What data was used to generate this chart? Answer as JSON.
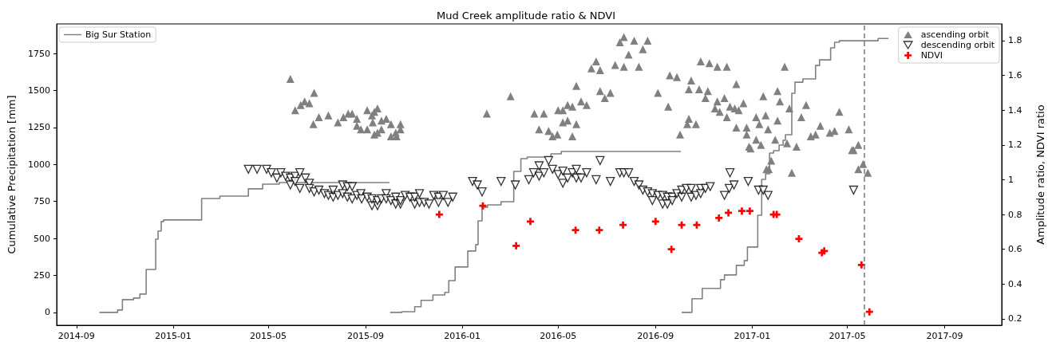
{
  "chart_data": {
    "type": "scatter",
    "title": "Mud Creek amplitude ratio & NDVI",
    "ylabel": "Cumulative Precipitation [mm]",
    "y2label": "Amplitude ratio, NDVI ratio",
    "xlim": [
      "2014-08-07",
      "2017-11-12"
    ],
    "xticks": [
      "2014-09",
      "2015-01",
      "2015-05",
      "2015-09",
      "2016-01",
      "2016-05",
      "2016-09",
      "2017-01",
      "2017-05",
      "2017-09"
    ],
    "ylim": [
      -87,
      1950
    ],
    "yticks": [
      0,
      250,
      500,
      750,
      1000,
      1250,
      1500,
      1750
    ],
    "y2lim": [
      0.163,
      1.896
    ],
    "y2ticks": [
      0.2,
      0.4,
      0.6,
      0.8,
      1.0,
      1.2,
      1.4,
      1.6,
      1.8
    ],
    "legend": "top right",
    "grid": false,
    "ref_lines": [
      {
        "axis": "x",
        "value": "2017-05-22",
        "color": "#808080",
        "line_style": "dashed"
      }
    ],
    "series": [
      {
        "name": "Big Sur Station",
        "type": "step",
        "color": "#808080",
        "x": [
          "2014-09-30",
          "2014-10-23",
          "2014-10-29",
          "2014-11-12",
          "2014-11-20",
          "2014-11-28",
          "2014-12-10",
          "2014-12-13",
          "2014-12-17",
          "2014-12-20",
          "2015-02-06",
          "2015-03-01",
          "2015-04-06",
          "2015-04-24",
          "2015-05-15",
          "2015-09-30",
          "2015-10-01",
          "2015-10-02",
          "2015-10-17",
          "2015-11-02",
          "2015-11-10",
          "2015-11-25",
          "2015-12-10",
          "2015-12-15",
          "2015-12-23",
          "2016-01-08",
          "2016-01-18",
          "2016-01-21",
          "2016-01-26",
          "2016-02-02",
          "2016-02-19",
          "2016-03-06",
          "2016-03-15",
          "2016-03-23",
          "2016-04-22",
          "2016-05-05",
          "2016-10-02",
          "2016-10-03",
          "2016-10-04",
          "2016-10-17",
          "2016-10-30",
          "2016-11-22",
          "2016-11-27",
          "2016-12-12",
          "2016-12-22",
          "2016-12-26",
          "2017-01-08",
          "2017-01-13",
          "2017-01-18",
          "2017-01-23",
          "2017-01-28",
          "2017-02-04",
          "2017-02-09",
          "2017-02-12",
          "2017-02-20",
          "2017-02-24",
          "2017-03-06",
          "2017-03-22",
          "2017-03-27",
          "2017-04-10",
          "2017-04-15",
          "2017-04-21",
          "2017-06-09",
          "2017-06-22"
        ],
        "values": [
          0,
          16,
          86,
          97,
          124,
          290,
          495,
          550,
          614,
          625,
          770,
          786,
          835,
          867,
          878,
          878,
          null,
          0,
          5,
          38,
          81,
          118,
          135,
          215,
          307,
          415,
          458,
          619,
          711,
          727,
          748,
          953,
          1039,
          1050,
          1072,
          1088,
          1088,
          null,
          0,
          92,
          162,
          221,
          253,
          318,
          350,
          442,
          657,
          899,
          937,
          1077,
          1093,
          1131,
          1163,
          1201,
          1481,
          1556,
          1578,
          1669,
          1707,
          1788,
          1826,
          1836,
          1852,
          1852
        ]
      },
      {
        "name": "ascending orbit",
        "axis": "y2",
        "marker": "triangle",
        "color": "#808080",
        "x": [
          "2015-05-29",
          "2015-06-04",
          "2015-06-11",
          "2015-06-16",
          "2015-06-22",
          "2015-06-28",
          "2015-06-27",
          "2015-07-04",
          "2015-07-16",
          "2015-07-28",
          "2015-08-04",
          "2015-08-10",
          "2015-08-15",
          "2015-08-21",
          "2015-08-21",
          "2015-08-26",
          "2015-09-03",
          "2015-09-03",
          "2015-09-09",
          "2015-09-10",
          "2015-09-12",
          "2015-09-12",
          "2015-09-16",
          "2015-09-16",
          "2015-09-21",
          "2015-09-21",
          "2015-09-27",
          "2015-10-03",
          "2015-10-03",
          "2015-10-09",
          "2015-10-10",
          "2015-10-15",
          "2015-10-15",
          "2016-02-01",
          "2016-03-02",
          "2016-04-01",
          "2016-04-07",
          "2016-04-13",
          "2016-04-19",
          "2016-04-24",
          "2016-04-30",
          "2016-05-01",
          "2016-05-07",
          "2016-05-07",
          "2016-05-13",
          "2016-05-13",
          "2016-05-19",
          "2016-05-19",
          "2016-05-24",
          "2016-05-24",
          "2016-05-30",
          "2016-06-06",
          "2016-06-12",
          "2016-06-18",
          "2016-06-23",
          "2016-06-23",
          "2016-06-29",
          "2016-07-06",
          "2016-07-12",
          "2016-07-18",
          "2016-07-23",
          "2016-07-23",
          "2016-07-29",
          "2016-08-05",
          "2016-08-11",
          "2016-08-16",
          "2016-08-22",
          "2016-09-04",
          "2016-09-17",
          "2016-09-19",
          "2016-09-28",
          "2016-10-02",
          "2016-10-11",
          "2016-10-13",
          "2016-10-13",
          "2016-10-16",
          "2016-10-22",
          "2016-10-26",
          "2016-10-28",
          "2016-11-03",
          "2016-11-06",
          "2016-11-08",
          "2016-11-15",
          "2016-11-18",
          "2016-11-18",
          "2016-11-21",
          "2016-11-27",
          "2016-11-30",
          "2016-11-30",
          "2016-12-04",
          "2016-12-10",
          "2016-12-12",
          "2016-12-12",
          "2016-12-15",
          "2016-12-21",
          "2016-12-25",
          "2016-12-25",
          "2016-12-28",
          "2016-12-30",
          "2017-01-06",
          "2017-01-06",
          "2017-01-10",
          "2017-01-12",
          "2017-01-15",
          "2017-01-18",
          "2017-01-19",
          "2017-01-21",
          "2017-01-22",
          "2017-01-25",
          "2017-01-30",
          "2017-02-02",
          "2017-02-02",
          "2017-02-05",
          "2017-02-11",
          "2017-02-14",
          "2017-02-17",
          "2017-02-20",
          "2017-02-26",
          "2017-03-04",
          "2017-03-10",
          "2017-03-16",
          "2017-03-22",
          "2017-03-28",
          "2017-04-09",
          "2017-04-15",
          "2017-04-21",
          "2017-05-03",
          "2017-05-07",
          "2017-05-09",
          "2017-05-15",
          "2017-05-15",
          "2017-05-21",
          "2017-05-27"
        ],
        "values": [
          1.58,
          1.4,
          1.43,
          1.45,
          1.44,
          1.5,
          1.32,
          1.36,
          1.37,
          1.33,
          1.36,
          1.38,
          1.38,
          1.35,
          1.31,
          1.29,
          1.29,
          1.4,
          1.37,
          1.33,
          1.39,
          1.26,
          1.41,
          1.27,
          1.34,
          1.29,
          1.35,
          1.32,
          1.25,
          1.27,
          1.25,
          1.32,
          1.29,
          1.38,
          1.48,
          1.38,
          1.29,
          1.38,
          1.28,
          1.25,
          1.26,
          1.4,
          1.4,
          1.33,
          1.43,
          1.34,
          1.42,
          1.25,
          1.54,
          1.32,
          1.45,
          1.43,
          1.64,
          1.68,
          1.63,
          1.51,
          1.47,
          1.5,
          1.66,
          1.79,
          1.65,
          1.82,
          1.72,
          1.8,
          1.65,
          1.75,
          1.8,
          1.5,
          1.42,
          1.6,
          1.59,
          1.26,
          1.32,
          1.35,
          1.52,
          1.57,
          1.32,
          1.52,
          1.68,
          1.47,
          1.51,
          1.67,
          1.41,
          1.65,
          1.45,
          1.39,
          1.47,
          1.65,
          1.36,
          1.42,
          1.41,
          1.55,
          1.3,
          1.4,
          1.44,
          1.3,
          1.26,
          1.19,
          1.18,
          1.36,
          1.23,
          1.32,
          1.2,
          1.48,
          1.37,
          1.06,
          1.29,
          1.06,
          1.11,
          1.23,
          1.51,
          1.34,
          1.45,
          1.65,
          1.21,
          1.41,
          1.04,
          1.19,
          1.36,
          1.43,
          1.25,
          1.26,
          1.31,
          1.27,
          1.28,
          1.39,
          1.29,
          1.17,
          1.17,
          1.2,
          1.06,
          1.09,
          1.04
        ]
      },
      {
        "name": "descending orbit",
        "axis": "y2",
        "marker": "triangle-down",
        "color": "#000000",
        "x": [
          "2015-04-06",
          "2015-04-17",
          "2015-04-29",
          "2015-05-05",
          "2015-05-12",
          "2015-05-17",
          "2015-05-23",
          "2015-05-29",
          "2015-05-29",
          "2015-06-04",
          "2015-06-04",
          "2015-06-10",
          "2015-06-10",
          "2015-06-17",
          "2015-06-22",
          "2015-06-22",
          "2015-06-28",
          "2015-07-04",
          "2015-07-11",
          "2015-07-16",
          "2015-07-22",
          "2015-07-22",
          "2015-07-28",
          "2015-08-03",
          "2015-08-03",
          "2015-08-09",
          "2015-08-09",
          "2015-08-15",
          "2015-08-15",
          "2015-08-21",
          "2015-08-26",
          "2015-08-27",
          "2015-09-03",
          "2015-09-09",
          "2015-09-09",
          "2015-09-16",
          "2015-09-16",
          "2015-09-21",
          "2015-09-27",
          "2015-09-27",
          "2015-10-03",
          "2015-10-09",
          "2015-10-09",
          "2015-10-15",
          "2015-10-15",
          "2015-10-21",
          "2015-10-27",
          "2015-11-02",
          "2015-11-02",
          "2015-11-08",
          "2015-11-08",
          "2015-11-14",
          "2015-11-20",
          "2015-11-26",
          "2015-12-02",
          "2015-12-02",
          "2015-12-08",
          "2015-12-14",
          "2015-12-20",
          "2016-01-14",
          "2016-01-20",
          "2016-01-26",
          "2016-02-19",
          "2016-03-08",
          "2016-03-25",
          "2016-03-31",
          "2016-04-07",
          "2016-04-07",
          "2016-04-13",
          "2016-04-19",
          "2016-04-24",
          "2016-05-01",
          "2016-05-07",
          "2016-05-07",
          "2016-05-13",
          "2016-05-19",
          "2016-05-24",
          "2016-05-24",
          "2016-05-30",
          "2016-06-06",
          "2016-06-18",
          "2016-06-23",
          "2016-07-06",
          "2016-07-18",
          "2016-07-23",
          "2016-07-29",
          "2016-08-05",
          "2016-08-11",
          "2016-08-16",
          "2016-08-22",
          "2016-08-28",
          "2016-08-28",
          "2016-09-04",
          "2016-09-10",
          "2016-09-10",
          "2016-09-16",
          "2016-09-16",
          "2016-09-22",
          "2016-09-22",
          "2016-09-28",
          "2016-10-04",
          "2016-10-04",
          "2016-10-10",
          "2016-10-16",
          "2016-10-16",
          "2016-10-22",
          "2016-10-28",
          "2016-10-28",
          "2016-11-03",
          "2016-11-09",
          "2016-11-27",
          "2016-12-03",
          "2016-12-04",
          "2016-12-09",
          "2016-12-27",
          "2017-01-09",
          "2017-01-15",
          "2017-01-21",
          "2017-05-09"
        ],
        "values": [
          1.06,
          1.06,
          1.06,
          1.04,
          1.01,
          1.04,
          1.02,
          1.01,
          0.97,
          1.02,
          0.99,
          1.04,
          0.95,
          1.01,
          0.98,
          0.95,
          0.93,
          0.94,
          0.92,
          0.91,
          0.9,
          0.94,
          0.91,
          0.97,
          0.92,
          0.96,
          0.9,
          0.96,
          0.89,
          0.91,
          0.92,
          0.89,
          0.9,
          0.85,
          0.89,
          0.85,
          0.88,
          0.89,
          0.92,
          0.89,
          0.88,
          0.9,
          0.86,
          0.86,
          0.88,
          0.91,
          0.9,
          0.86,
          0.9,
          0.92,
          0.87,
          0.87,
          0.86,
          0.91,
          0.9,
          0.87,
          0.91,
          0.87,
          0.9,
          0.99,
          0.97,
          0.93,
          0.99,
          0.97,
          1.0,
          1.04,
          1.08,
          1.02,
          1.04,
          1.11,
          1.06,
          1.03,
          1.05,
          0.98,
          1.01,
          1.04,
          1.06,
          1.01,
          1.01,
          1.04,
          1.0,
          1.11,
          0.99,
          1.04,
          1.04,
          1.04,
          0.99,
          0.97,
          0.94,
          0.93,
          0.92,
          0.88,
          0.91,
          0.91,
          0.86,
          0.9,
          0.86,
          0.9,
          0.88,
          0.92,
          0.9,
          0.94,
          0.95,
          0.95,
          0.9,
          0.91,
          0.95,
          0.92,
          0.95,
          0.96,
          0.91,
          0.95,
          1.04,
          0.97,
          0.99,
          0.94,
          0.94,
          0.91,
          0.94
        ]
      },
      {
        "name": "NDVI",
        "axis": "y2",
        "marker": "cross",
        "color": "#ff0000",
        "x": [
          "2015-12-03",
          "2016-01-27",
          "2016-03-09",
          "2016-03-27",
          "2016-05-23",
          "2016-06-22",
          "2016-07-22",
          "2016-09-01",
          "2016-09-21",
          "2016-10-04",
          "2016-10-23",
          "2016-11-20",
          "2016-12-02",
          "2016-12-19",
          "2016-12-29",
          "2017-01-28",
          "2017-02-01",
          "2017-03-01",
          "2017-03-30",
          "2017-04-02",
          "2017-05-19",
          "2017-05-29"
        ],
        "values": [
          0.8,
          0.85,
          0.62,
          0.76,
          0.71,
          0.71,
          0.74,
          0.76,
          0.6,
          0.74,
          0.74,
          0.78,
          0.81,
          0.82,
          0.82,
          0.8,
          0.8,
          0.66,
          0.58,
          0.59,
          0.51,
          0.24
        ]
      }
    ]
  }
}
